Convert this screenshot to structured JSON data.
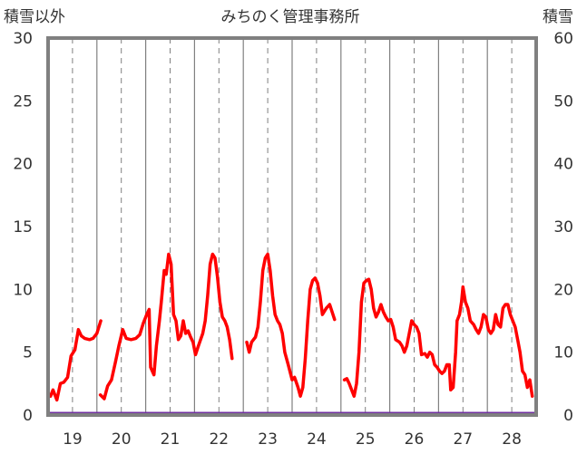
{
  "chart_data": {
    "type": "line",
    "title": "みちのく管理事務所",
    "ylabel_left": "積雪以外",
    "ylabel_right": "積雪",
    "ylim_left": [
      0,
      30
    ],
    "ylim_right": [
      0,
      60
    ],
    "yticks_left": [
      "0",
      "5",
      "10",
      "15",
      "20",
      "25",
      "30"
    ],
    "yticks_right": [
      "0",
      "10",
      "20",
      "30",
      "40",
      "50",
      "60"
    ],
    "x_range": [
      18.5,
      28.5
    ],
    "days": [
      {
        "label": "19",
        "x": 19
      },
      {
        "label": "20",
        "x": 20
      },
      {
        "label": "21",
        "x": 21
      },
      {
        "label": "22",
        "x": 22
      },
      {
        "label": "23",
        "x": 23
      },
      {
        "label": "24",
        "x": 24
      },
      {
        "label": "25",
        "x": 25
      },
      {
        "label": "26",
        "x": 26
      },
      {
        "label": "27",
        "x": 27
      },
      {
        "label": "28",
        "x": 28
      }
    ],
    "grid": "vertical",
    "colors": {
      "line": "#ff0000",
      "snow": "#7030a0",
      "frame": "#808080"
    },
    "series": [
      {
        "axis": "left",
        "segments": [
          [
            [
              18.55,
              1.5
            ],
            [
              18.6,
              2.0
            ],
            [
              18.68,
              1.2
            ],
            [
              18.75,
              2.5
            ],
            [
              18.82,
              2.6
            ],
            [
              18.9,
              3.0
            ],
            [
              18.97,
              4.7
            ],
            [
              19.05,
              5.2
            ],
            [
              19.12,
              6.8
            ],
            [
              19.18,
              6.3
            ],
            [
              19.25,
              6.1
            ],
            [
              19.35,
              6.0
            ],
            [
              19.42,
              6.1
            ],
            [
              19.5,
              6.5
            ],
            [
              19.58,
              7.5
            ]
          ],
          [
            [
              19.57,
              1.6
            ],
            [
              19.65,
              1.3
            ],
            [
              19.72,
              2.3
            ],
            [
              19.8,
              2.8
            ],
            [
              19.88,
              4.2
            ],
            [
              19.95,
              5.5
            ],
            [
              20.03,
              6.8
            ],
            [
              20.1,
              6.1
            ],
            [
              20.2,
              6.0
            ],
            [
              20.3,
              6.1
            ],
            [
              20.38,
              6.4
            ],
            [
              20.45,
              7.3
            ],
            [
              20.52,
              8.0
            ],
            [
              20.57,
              8.4
            ],
            [
              20.6,
              3.8
            ],
            [
              20.67,
              3.2
            ],
            [
              20.72,
              5.5
            ],
            [
              20.78,
              7.5
            ],
            [
              20.82,
              9.0
            ],
            [
              20.88,
              11.5
            ],
            [
              20.92,
              11.2
            ],
            [
              20.97,
              12.8
            ],
            [
              21.02,
              12.0
            ],
            [
              21.07,
              8.0
            ],
            [
              21.12,
              7.5
            ],
            [
              21.17,
              6.0
            ],
            [
              21.22,
              6.3
            ],
            [
              21.27,
              7.5
            ],
            [
              21.32,
              6.5
            ],
            [
              21.37,
              6.7
            ],
            [
              21.42,
              6.2
            ],
            [
              21.47,
              5.8
            ],
            [
              21.52,
              4.8
            ],
            [
              21.58,
              5.5
            ],
            [
              21.67,
              6.5
            ],
            [
              21.72,
              7.5
            ],
            [
              21.77,
              9.5
            ],
            [
              21.82,
              12.0
            ],
            [
              21.87,
              12.8
            ],
            [
              21.92,
              12.5
            ],
            [
              21.97,
              11.0
            ],
            [
              22.02,
              9.0
            ],
            [
              22.07,
              7.8
            ],
            [
              22.12,
              7.5
            ],
            [
              22.17,
              7.0
            ],
            [
              22.22,
              6.0
            ],
            [
              22.27,
              4.5
            ]
          ],
          [
            [
              22.57,
              5.8
            ],
            [
              22.62,
              5.0
            ],
            [
              22.67,
              5.8
            ],
            [
              22.75,
              6.2
            ],
            [
              22.8,
              7.0
            ],
            [
              22.85,
              9.0
            ],
            [
              22.9,
              11.5
            ],
            [
              22.95,
              12.5
            ],
            [
              23.0,
              12.8
            ],
            [
              23.05,
              11.5
            ],
            [
              23.1,
              9.5
            ],
            [
              23.15,
              8.0
            ],
            [
              23.2,
              7.5
            ],
            [
              23.25,
              7.2
            ],
            [
              23.3,
              6.5
            ],
            [
              23.35,
              5.0
            ],
            [
              23.42,
              4.0
            ],
            [
              23.5,
              2.8
            ],
            [
              23.55,
              3.0
            ],
            [
              23.62,
              2.2
            ],
            [
              23.67,
              1.5
            ],
            [
              23.72,
              2.2
            ],
            [
              23.77,
              4.5
            ],
            [
              23.82,
              7.5
            ],
            [
              23.87,
              10.0
            ],
            [
              23.92,
              10.7
            ],
            [
              23.97,
              10.9
            ],
            [
              24.02,
              10.5
            ],
            [
              24.07,
              9.5
            ],
            [
              24.12,
              8.0
            ],
            [
              24.2,
              8.5
            ],
            [
              24.27,
              8.8
            ],
            [
              24.32,
              8.2
            ],
            [
              24.37,
              7.6
            ]
          ],
          [
            [
              24.57,
              2.8
            ],
            [
              24.62,
              2.9
            ],
            [
              24.67,
              2.5
            ],
            [
              24.72,
              2.0
            ],
            [
              24.77,
              1.5
            ],
            [
              24.82,
              2.5
            ],
            [
              24.87,
              5.0
            ],
            [
              24.92,
              9.0
            ],
            [
              24.97,
              10.5
            ],
            [
              25.02,
              10.7
            ],
            [
              25.07,
              10.8
            ],
            [
              25.12,
              10.0
            ],
            [
              25.17,
              8.5
            ],
            [
              25.22,
              7.8
            ],
            [
              25.27,
              8.2
            ],
            [
              25.32,
              8.8
            ],
            [
              25.37,
              8.2
            ],
            [
              25.42,
              7.8
            ],
            [
              25.47,
              7.5
            ],
            [
              25.52,
              7.6
            ],
            [
              25.57,
              7.0
            ],
            [
              25.62,
              6.0
            ],
            [
              25.7,
              5.8
            ],
            [
              25.75,
              5.5
            ],
            [
              25.8,
              5.0
            ],
            [
              25.85,
              5.5
            ],
            [
              25.9,
              6.5
            ],
            [
              25.95,
              7.5
            ],
            [
              26.0,
              7.2
            ],
            [
              26.05,
              7.0
            ],
            [
              26.1,
              6.5
            ],
            [
              26.15,
              4.8
            ],
            [
              26.22,
              4.9
            ],
            [
              26.27,
              4.6
            ],
            [
              26.32,
              5.0
            ],
            [
              26.37,
              4.8
            ],
            [
              26.42,
              4.0
            ],
            [
              26.47,
              3.8
            ],
            [
              26.52,
              3.5
            ],
            [
              26.57,
              3.3
            ],
            [
              26.62,
              3.5
            ],
            [
              26.67,
              4.0
            ],
            [
              26.72,
              4.0
            ],
            [
              26.75,
              2.0
            ],
            [
              26.8,
              2.2
            ],
            [
              26.85,
              5.0
            ],
            [
              26.88,
              7.5
            ],
            [
              26.93,
              8.0
            ],
            [
              26.97,
              9.0
            ],
            [
              27.0,
              10.2
            ],
            [
              27.05,
              9.0
            ],
            [
              27.1,
              8.5
            ],
            [
              27.15,
              7.5
            ],
            [
              27.22,
              7.2
            ],
            [
              27.27,
              6.8
            ],
            [
              27.32,
              6.5
            ],
            [
              27.37,
              7.0
            ],
            [
              27.42,
              8.0
            ],
            [
              27.47,
              7.8
            ],
            [
              27.52,
              6.8
            ],
            [
              27.57,
              6.5
            ],
            [
              27.62,
              6.8
            ],
            [
              27.67,
              8.0
            ],
            [
              27.72,
              7.2
            ],
            [
              27.77,
              7.0
            ],
            [
              27.82,
              8.5
            ],
            [
              27.87,
              8.8
            ],
            [
              27.92,
              8.8
            ],
            [
              27.97,
              8.0
            ],
            [
              28.02,
              7.5
            ],
            [
              28.07,
              7.0
            ],
            [
              28.12,
              6.0
            ],
            [
              28.17,
              5.0
            ],
            [
              28.22,
              3.5
            ],
            [
              28.27,
              3.2
            ],
            [
              28.32,
              2.2
            ],
            [
              28.37,
              2.8
            ],
            [
              28.42,
              1.5
            ]
          ]
        ]
      },
      {
        "axis": "right",
        "points": [
          [
            18.5,
            0
          ],
          [
            28.5,
            0
          ]
        ]
      }
    ]
  }
}
